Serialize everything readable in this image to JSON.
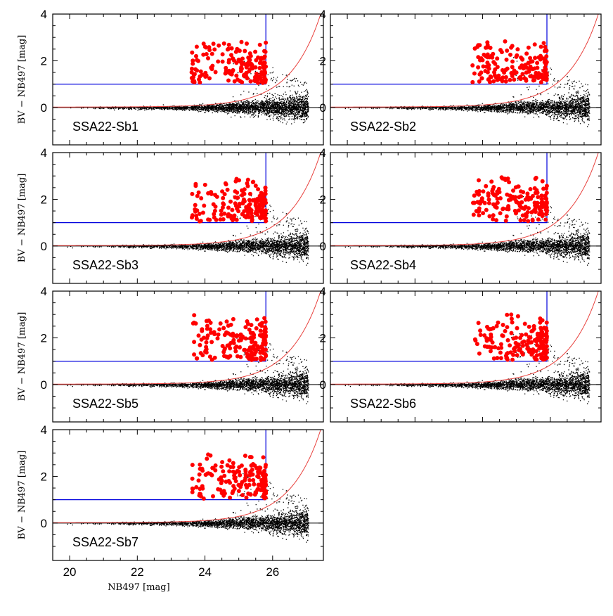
{
  "chart_data": {
    "type": "scatter",
    "xlabel": "NB497 [mag]",
    "ylabel": "BV − NB497 [mag]",
    "xlim": [
      19.5,
      27.5
    ],
    "ylim": [
      -1.6,
      4.0
    ],
    "x_ticks": [
      20,
      22,
      24,
      26
    ],
    "y_ticks": [
      0,
      2,
      4
    ],
    "selection": {
      "color_cut": 1.0,
      "mag_limits": {
        "Sb1": 25.8,
        "Sb2": 25.9,
        "Sb3": 25.8,
        "Sb4": 25.9,
        "Sb5": 25.8,
        "Sb6": 25.9,
        "Sb7": 25.8
      }
    },
    "colors": {
      "selected": "#ff0000",
      "field": "#000000",
      "cut": "#0000dd",
      "curve": "#e8403c"
    },
    "panels": [
      {
        "label": "SSA22-Sb1"
      },
      {
        "label": "SSA22-Sb2"
      },
      {
        "label": "SSA22-Sb3"
      },
      {
        "label": "SSA22-Sb4"
      },
      {
        "label": "SSA22-Sb5"
      },
      {
        "label": "SSA22-Sb6"
      },
      {
        "label": "SSA22-Sb7"
      }
    ],
    "series": [
      {
        "values": "BV − NB497 color of detected field objects (black)"
      },
      {
        "values": "selected emitter candidates (red)"
      }
    ]
  }
}
